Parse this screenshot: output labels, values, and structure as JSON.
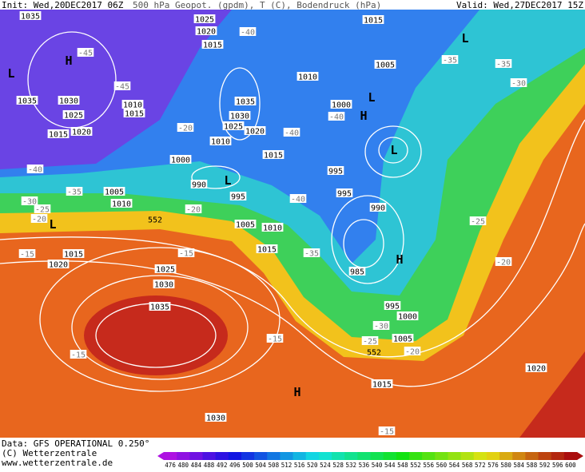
{
  "header": {
    "init": "Init: Wed,20DEC2017 06Z",
    "product": "500 hPa Geopot. (gpdm), T (C), Bodendruck (hPa)",
    "valid": "Valid: Wed,27DEC2017 15Z"
  },
  "footer": {
    "data": "Data: GFS OPERATIONAL 0.250°",
    "copyright": "(C) Wetterzentrale",
    "url": "www.wetterzentrale.de"
  },
  "colorbar": {
    "labels": [
      476,
      480,
      484,
      488,
      492,
      496,
      500,
      504,
      508,
      512,
      516,
      520,
      524,
      528,
      532,
      536,
      540,
      544,
      548,
      552,
      556,
      560,
      564,
      568,
      572,
      576,
      580,
      584,
      588,
      592,
      596,
      600
    ]
  },
  "isobar_labels": [
    "1035",
    "1025",
    "1020",
    "1015",
    "1015",
    "1005",
    "1010",
    "1035",
    "1030",
    "1010",
    "1025",
    "1015",
    "1030",
    "1035",
    "1000",
    "1025",
    "1020",
    "1015",
    "1020",
    "1010",
    "1015",
    "1000",
    "995",
    "990",
    "995",
    "1005",
    "1010",
    "995",
    "990",
    "1005",
    "1010",
    "1015",
    "1015",
    "1020",
    "1025",
    "1030",
    "985",
    "1035",
    "995",
    "1000",
    "1005",
    "1015",
    "1020",
    "1030"
  ],
  "temperature_labels": [
    "-45",
    "-40",
    "-35",
    "-35",
    "-30",
    "-45",
    "-40",
    "-35",
    "-30",
    "-25",
    "-20",
    "-20",
    "-40",
    "-40",
    "-40",
    "-35",
    "-25",
    "-20",
    "-15",
    "-15",
    "-15",
    "-15",
    "-30",
    "-25",
    "-20",
    "-15",
    "-20"
  ],
  "geopotential_labels": [
    "552",
    "552"
  ],
  "pressure_centers": [
    "H",
    "L",
    "L",
    "L",
    "H",
    "L",
    "L",
    "L",
    "H",
    "H"
  ]
}
